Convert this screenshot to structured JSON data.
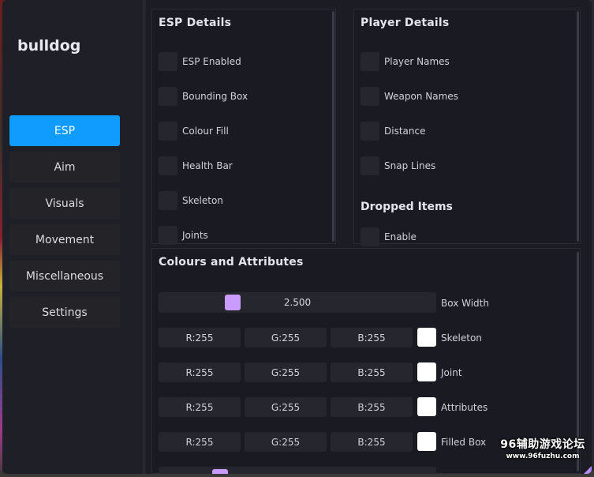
{
  "brand": "bulldog",
  "nav": [
    {
      "label": "ESP",
      "active": true
    },
    {
      "label": "Aim",
      "active": false
    },
    {
      "label": "Visuals",
      "active": false
    },
    {
      "label": "Movement",
      "active": false
    },
    {
      "label": "Miscellaneous",
      "active": false
    },
    {
      "label": "Settings",
      "active": false
    }
  ],
  "esp_details": {
    "title": "ESP Details",
    "options": [
      "ESP Enabled",
      "Bounding Box",
      "Colour Fill",
      "Health Bar",
      "Skeleton",
      "Joints"
    ]
  },
  "player_details": {
    "title": "Player Details",
    "options": [
      "Player Names",
      "Weapon Names",
      "Distance",
      "Snap Lines"
    ],
    "dropped_title": "Dropped Items",
    "dropped_options": [
      "Enable"
    ]
  },
  "colours": {
    "title": "Colours and Attributes",
    "box_width": {
      "label": "Box Width",
      "value": "2.500"
    },
    "rows": [
      {
        "label": "Skeleton",
        "r": "R:255",
        "g": "G:255",
        "b": "B:255"
      },
      {
        "label": "Joint",
        "r": "R:255",
        "g": "G:255",
        "b": "B:255"
      },
      {
        "label": "Attributes",
        "r": "R:255",
        "g": "G:255",
        "b": "B:255"
      },
      {
        "label": "Filled Box",
        "r": "R:255",
        "g": "G:255",
        "b": "B:255"
      }
    ]
  },
  "watermark": {
    "main": "96辅助游戏论坛",
    "url": "www.96fuzhu.com"
  },
  "colors": {
    "accent": "#0f9bff",
    "slider_thumb": "#c99bff",
    "swatch": "#ffffff"
  }
}
